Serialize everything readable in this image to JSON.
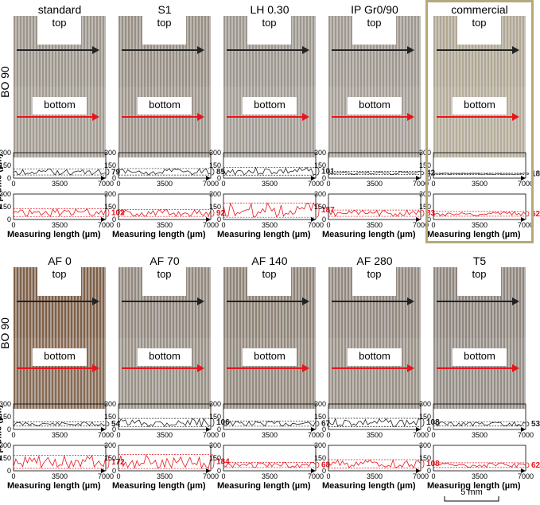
{
  "row_label": "BO 90",
  "surface_labels": {
    "top": "top",
    "bottom": "bottom"
  },
  "axis": {
    "ylabel": "z-profile (µm)",
    "xlabel": "Measuring length (µm)",
    "yticks": [
      "300",
      "150",
      "0"
    ],
    "xticks": [
      "0",
      "3500",
      "7000"
    ]
  },
  "scale_bar": "5 mm",
  "colors": {
    "top": "#222222",
    "bottom": "#e8141c",
    "highlight": "#b5a97a"
  },
  "rows": [
    {
      "samples": [
        {
          "name": "standard",
          "top_value": "79",
          "bottom_value": "102",
          "texture": "#9a9186"
        },
        {
          "name": "S1",
          "top_value": "85",
          "bottom_value": "92",
          "texture": "#948a7f"
        },
        {
          "name": "LH 0.30",
          "top_value": "101",
          "bottom_value": "187",
          "texture": "#9a9289"
        },
        {
          "name": "IP Gr0/90",
          "top_value": "42",
          "bottom_value": "83",
          "texture": "#9c938a"
        },
        {
          "name": "commercial",
          "top_value": "18",
          "bottom_value": "62",
          "texture": "#aea48e",
          "highlighted": true
        }
      ]
    },
    {
      "samples": [
        {
          "name": "AF 0",
          "top_value": "54",
          "bottom_value": "172",
          "texture": "#7a5a40"
        },
        {
          "name": "AF 70",
          "top_value": "106",
          "bottom_value": "184",
          "texture": "#8e8478"
        },
        {
          "name": "AF 140",
          "top_value": "67",
          "bottom_value": "68",
          "texture": "#8a7d70"
        },
        {
          "name": "AF 280",
          "top_value": "108",
          "bottom_value": "108",
          "texture": "#8f8479"
        },
        {
          "name": "T5",
          "top_value": "53",
          "bottom_value": "62",
          "texture": "#8a8078"
        }
      ]
    }
  ]
}
